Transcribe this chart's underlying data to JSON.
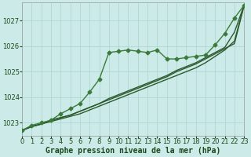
{
  "title": "Graphe pression niveau de la mer (hPa)",
  "background_color": "#cceae8",
  "grid_color": "#aad4d0",
  "line_color_marked": "#3a7a3a",
  "line_color_dark": "#2d5a2d",
  "xlim": [
    0,
    23
  ],
  "ylim": [
    1022.5,
    1027.7
  ],
  "yticks": [
    1023,
    1024,
    1025,
    1026,
    1027
  ],
  "xticks": [
    0,
    1,
    2,
    3,
    4,
    5,
    6,
    7,
    8,
    9,
    10,
    11,
    12,
    13,
    14,
    15,
    16,
    17,
    18,
    19,
    20,
    21,
    22,
    23
  ],
  "series": [
    [
      1022.7,
      1022.9,
      1023.0,
      1023.1,
      1023.35,
      1023.55,
      1023.75,
      1024.2,
      1024.7,
      1025.75,
      1025.8,
      1025.85,
      1025.8,
      1025.75,
      1025.85,
      1025.5,
      1025.5,
      1025.55,
      1025.6,
      1025.65,
      1026.05,
      1026.5,
      1027.1,
      1027.6
    ],
    [
      1022.7,
      1022.85,
      1022.95,
      1023.05,
      1023.15,
      1023.25,
      1023.35,
      1023.5,
      1023.65,
      1023.8,
      1023.95,
      1024.1,
      1024.25,
      1024.4,
      1024.55,
      1024.7,
      1024.85,
      1025.0,
      1025.15,
      1025.35,
      1025.6,
      1025.85,
      1026.2,
      1027.6
    ],
    [
      1022.7,
      1022.85,
      1022.95,
      1023.1,
      1023.2,
      1023.3,
      1023.45,
      1023.6,
      1023.75,
      1023.95,
      1024.1,
      1024.25,
      1024.4,
      1024.55,
      1024.7,
      1024.85,
      1025.05,
      1025.2,
      1025.35,
      1025.55,
      1025.75,
      1025.95,
      1026.55,
      1027.6
    ],
    [
      1022.7,
      1022.85,
      1022.95,
      1023.1,
      1023.2,
      1023.3,
      1023.45,
      1023.6,
      1023.75,
      1023.9,
      1024.05,
      1024.2,
      1024.35,
      1024.5,
      1024.65,
      1024.8,
      1025.0,
      1025.15,
      1025.3,
      1025.5,
      1025.7,
      1025.9,
      1026.1,
      1027.6
    ]
  ],
  "has_markers": [
    true,
    false,
    false,
    false
  ],
  "marker_style": "D",
  "marker_size": 2.5,
  "linewidths": [
    1.0,
    1.0,
    1.0,
    1.0
  ],
  "font_color": "#1a4a1a",
  "font_size_label": 7,
  "font_size_tick": 6
}
